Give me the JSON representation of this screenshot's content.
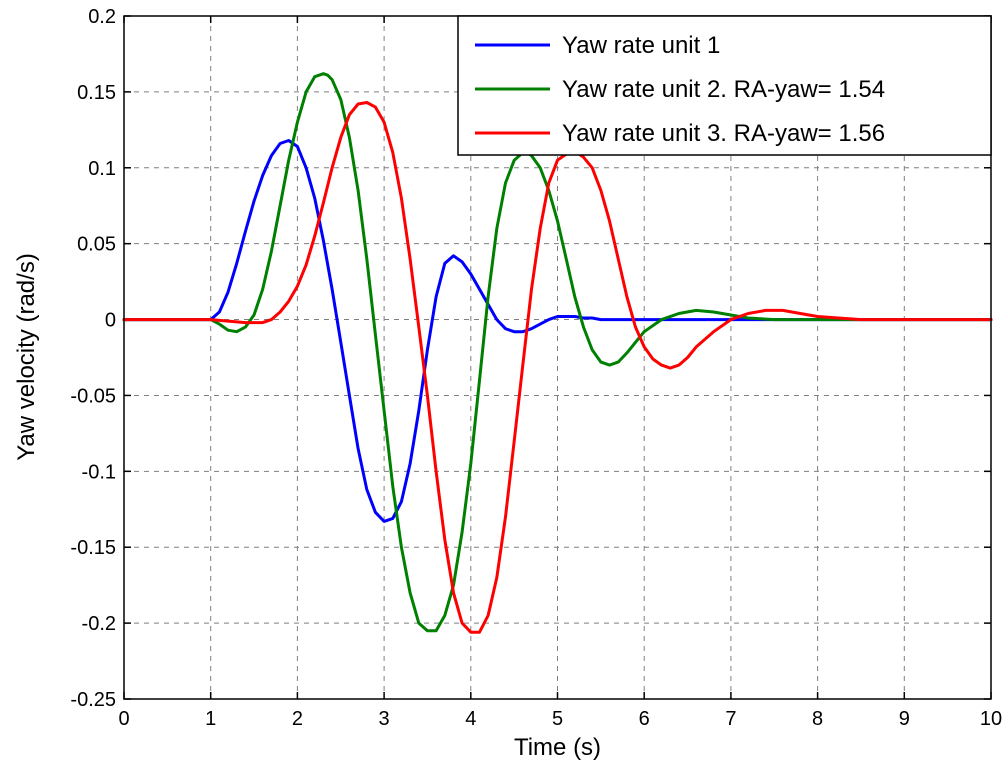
{
  "chart_data": {
    "type": "line",
    "title": "",
    "xlabel": "Time (s)",
    "ylabel": "Yaw velocity (rad/s)",
    "xlim": [
      0,
      10
    ],
    "ylim": [
      -0.25,
      0.2
    ],
    "x_ticks": [
      0,
      1,
      2,
      3,
      4,
      5,
      6,
      7,
      8,
      9,
      10
    ],
    "x_tick_labels": [
      "0",
      "1",
      "2",
      "3",
      "4",
      "5",
      "6",
      "7",
      "8",
      "9",
      "10"
    ],
    "y_ticks": [
      -0.25,
      -0.2,
      -0.15,
      -0.1,
      -0.05,
      0,
      0.05,
      0.1,
      0.15,
      0.2
    ],
    "y_tick_labels": [
      "-0.25",
      "-0.2",
      "-0.15",
      "-0.1",
      "-0.05",
      "0",
      "0.05",
      "0.1",
      "0.15",
      "0.2"
    ],
    "grid": true,
    "legend_position": "top-right",
    "series": [
      {
        "name": "Yaw rate unit 1",
        "color": "#0000ff",
        "x": [
          0,
          1.0,
          1.1,
          1.2,
          1.3,
          1.4,
          1.5,
          1.6,
          1.7,
          1.8,
          1.9,
          2.0,
          2.1,
          2.2,
          2.3,
          2.4,
          2.5,
          2.6,
          2.7,
          2.8,
          2.9,
          3.0,
          3.1,
          3.2,
          3.3,
          3.4,
          3.5,
          3.6,
          3.7,
          3.8,
          3.9,
          4.0,
          4.1,
          4.2,
          4.3,
          4.4,
          4.5,
          4.6,
          4.7,
          4.8,
          4.9,
          5.0,
          5.1,
          5.2,
          5.3,
          5.4,
          5.5,
          5.6,
          5.7,
          5.8,
          5.9,
          6.0,
          6.2,
          6.5,
          7.0,
          7.5,
          8.0,
          8.8,
          9.0,
          10.0
        ],
        "y": [
          0,
          0,
          0.005,
          0.018,
          0.037,
          0.058,
          0.078,
          0.095,
          0.108,
          0.116,
          0.118,
          0.114,
          0.1,
          0.08,
          0.052,
          0.02,
          -0.015,
          -0.05,
          -0.085,
          -0.112,
          -0.127,
          -0.133,
          -0.131,
          -0.12,
          -0.095,
          -0.06,
          -0.02,
          0.015,
          0.037,
          0.042,
          0.038,
          0.03,
          0.02,
          0.01,
          0.0,
          -0.006,
          -0.008,
          -0.008,
          -0.006,
          -0.003,
          0.0,
          0.002,
          0.002,
          0.002,
          0.001,
          0.001,
          0.0,
          0.0,
          0.0,
          0.0,
          0.0,
          0.0,
          0.0,
          0.0,
          0.0,
          0.0,
          0.0,
          0.0,
          0.0,
          0.0
        ]
      },
      {
        "name": "Yaw rate unit 2. RA-yaw= 1.54",
        "color": "#008000",
        "x": [
          0,
          1.0,
          1.1,
          1.2,
          1.3,
          1.4,
          1.5,
          1.6,
          1.7,
          1.8,
          1.9,
          2.0,
          2.1,
          2.2,
          2.3,
          2.35,
          2.4,
          2.5,
          2.6,
          2.7,
          2.8,
          2.9,
          3.0,
          3.1,
          3.2,
          3.3,
          3.4,
          3.5,
          3.6,
          3.7,
          3.8,
          3.9,
          4.0,
          4.1,
          4.2,
          4.3,
          4.4,
          4.5,
          4.6,
          4.65,
          4.7,
          4.8,
          4.9,
          5.0,
          5.1,
          5.2,
          5.3,
          5.4,
          5.5,
          5.6,
          5.7,
          5.8,
          5.9,
          6.0,
          6.2,
          6.4,
          6.6,
          6.8,
          7.0,
          7.2,
          7.5,
          8.0,
          9.0,
          10.0
        ],
        "y": [
          0,
          0,
          -0.003,
          -0.007,
          -0.008,
          -0.005,
          0.003,
          0.02,
          0.045,
          0.075,
          0.105,
          0.13,
          0.15,
          0.16,
          0.162,
          0.161,
          0.158,
          0.145,
          0.12,
          0.085,
          0.04,
          -0.01,
          -0.06,
          -0.11,
          -0.15,
          -0.18,
          -0.2,
          -0.205,
          -0.205,
          -0.195,
          -0.175,
          -0.14,
          -0.095,
          -0.04,
          0.015,
          0.06,
          0.09,
          0.105,
          0.11,
          0.11,
          0.108,
          0.1,
          0.085,
          0.065,
          0.04,
          0.015,
          -0.005,
          -0.02,
          -0.028,
          -0.03,
          -0.028,
          -0.022,
          -0.015,
          -0.008,
          0.0,
          0.004,
          0.006,
          0.005,
          0.003,
          0.001,
          0.0,
          0.0,
          0.0,
          0.0
        ]
      },
      {
        "name": "Yaw rate unit 3. RA-yaw= 1.56",
        "color": "#ff0000",
        "x": [
          0,
          1.0,
          1.4,
          1.5,
          1.6,
          1.7,
          1.8,
          1.9,
          2.0,
          2.1,
          2.2,
          2.3,
          2.4,
          2.5,
          2.6,
          2.7,
          2.8,
          2.9,
          3.0,
          3.1,
          3.2,
          3.3,
          3.4,
          3.5,
          3.6,
          3.7,
          3.8,
          3.9,
          4.0,
          4.1,
          4.2,
          4.3,
          4.4,
          4.5,
          4.6,
          4.7,
          4.8,
          4.9,
          5.0,
          5.1,
          5.2,
          5.25,
          5.3,
          5.4,
          5.5,
          5.6,
          5.7,
          5.8,
          5.9,
          6.0,
          6.1,
          6.2,
          6.3,
          6.4,
          6.5,
          6.6,
          6.8,
          7.0,
          7.2,
          7.4,
          7.6,
          7.8,
          8.0,
          8.5,
          9.0,
          10.0
        ],
        "y": [
          0,
          0,
          -0.002,
          -0.002,
          -0.002,
          0.0,
          0.005,
          0.012,
          0.022,
          0.036,
          0.055,
          0.077,
          0.1,
          0.12,
          0.135,
          0.142,
          0.143,
          0.14,
          0.13,
          0.11,
          0.08,
          0.04,
          -0.005,
          -0.05,
          -0.1,
          -0.145,
          -0.18,
          -0.2,
          -0.206,
          -0.206,
          -0.195,
          -0.17,
          -0.13,
          -0.08,
          -0.03,
          0.02,
          0.06,
          0.09,
          0.105,
          0.109,
          0.11,
          0.109,
          0.107,
          0.1,
          0.085,
          0.065,
          0.04,
          0.015,
          -0.005,
          -0.018,
          -0.026,
          -0.03,
          -0.032,
          -0.03,
          -0.025,
          -0.018,
          -0.008,
          0.0,
          0.004,
          0.006,
          0.006,
          0.004,
          0.002,
          0.0,
          0.0,
          0.0
        ]
      }
    ]
  }
}
